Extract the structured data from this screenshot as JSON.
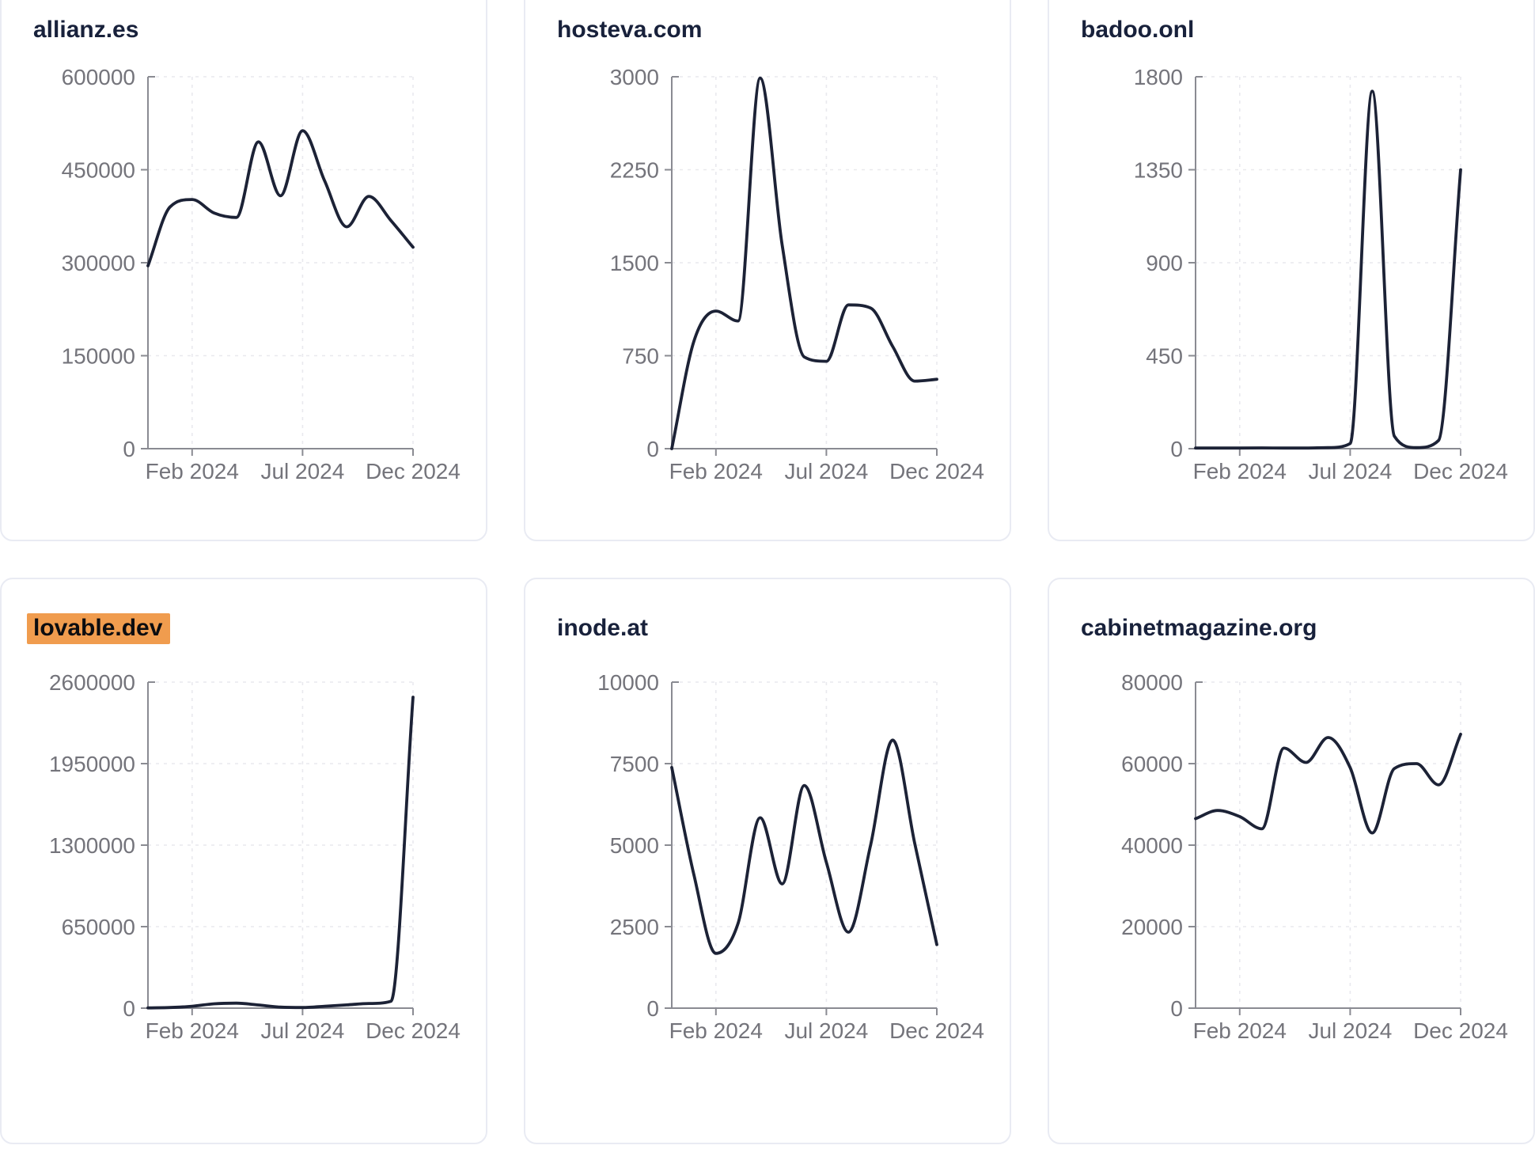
{
  "ui": {
    "colors": {
      "line": "#1c2236",
      "title_text": "#18213b",
      "axis_line": "#8a8b92",
      "tick_label": "#74747b",
      "gridline": "#e9e9ee",
      "card_border": "#e9ebf3",
      "card_background": "#ffffff",
      "page_background": "#ffffff",
      "highlight_background": "#f09c4e",
      "highlight_text": "#0c0d10"
    }
  },
  "chart_data": [
    {
      "type": "line",
      "title": "allianz.es",
      "highlighted": false,
      "x": [
        "Dec 2023",
        "Jan 2024",
        "Feb 2024",
        "Mar 2024",
        "Apr 2024",
        "May 2024",
        "Jun 2024",
        "Jul 2024",
        "Aug 2024",
        "Sep 2024",
        "Oct 2024",
        "Nov 2024",
        "Dec 2024"
      ],
      "values": [
        295000,
        390000,
        402000,
        380000,
        373000,
        495000,
        408000,
        513000,
        432000,
        358000,
        407000,
        368000,
        325000
      ],
      "y_ticks": [
        0,
        150000,
        300000,
        450000,
        600000
      ],
      "ylim": [
        0,
        600000
      ],
      "x_tick_labels": [
        "Feb 2024",
        "Jul 2024",
        "Dec 2024"
      ],
      "x_tick_indices": [
        2,
        7,
        12
      ],
      "grid": true,
      "legend": false
    },
    {
      "type": "line",
      "title": "hosteva.com",
      "highlighted": false,
      "x": [
        "Dec 2023",
        "Jan 2024",
        "Feb 2024",
        "Mar 2024",
        "Apr 2024",
        "May 2024",
        "Jun 2024",
        "Jul 2024",
        "Aug 2024",
        "Sep 2024",
        "Oct 2024",
        "Nov 2024",
        "Dec 2024"
      ],
      "values": [
        0,
        865,
        1110,
        1030,
        2990,
        1640,
        740,
        705,
        1160,
        1135,
        825,
        545,
        560
      ],
      "y_ticks": [
        0,
        750,
        1500,
        2250,
        3000
      ],
      "ylim": [
        0,
        3000
      ],
      "x_tick_labels": [
        "Feb 2024",
        "Jul 2024",
        "Dec 2024"
      ],
      "x_tick_indices": [
        2,
        7,
        12
      ],
      "grid": true,
      "legend": false
    },
    {
      "type": "line",
      "title": "badoo.onl",
      "highlighted": false,
      "x": [
        "Dec 2023",
        "Jan 2024",
        "Feb 2024",
        "Mar 2024",
        "Apr 2024",
        "May 2024",
        "Jun 2024",
        "Jul 2024",
        "Aug 2024",
        "Sep 2024",
        "Oct 2024",
        "Nov 2024",
        "Dec 2024"
      ],
      "values": [
        3,
        3,
        3,
        4,
        3,
        3,
        5,
        25,
        1730,
        60,
        5,
        40,
        1350
      ],
      "y_ticks": [
        0,
        450,
        900,
        1350,
        1800
      ],
      "ylim": [
        0,
        1800
      ],
      "x_tick_labels": [
        "Feb 2024",
        "Jul 2024",
        "Dec 2024"
      ],
      "x_tick_indices": [
        2,
        7,
        12
      ],
      "grid": true,
      "legend": false
    },
    {
      "type": "line",
      "title": "lovable.dev",
      "highlighted": true,
      "x": [
        "Dec 2023",
        "Jan 2024",
        "Feb 2024",
        "Mar 2024",
        "Apr 2024",
        "May 2024",
        "Jun 2024",
        "Jul 2024",
        "Aug 2024",
        "Sep 2024",
        "Oct 2024",
        "Nov 2024",
        "Dec 2024"
      ],
      "values": [
        2000,
        5000,
        15000,
        35000,
        40000,
        25000,
        8000,
        5000,
        15000,
        26000,
        37000,
        55000,
        2480000
      ],
      "y_ticks": [
        0,
        650000,
        1300000,
        1950000,
        2600000
      ],
      "ylim": [
        0,
        2600000
      ],
      "x_tick_labels": [
        "Feb 2024",
        "Jul 2024",
        "Dec 2024"
      ],
      "x_tick_indices": [
        2,
        7,
        12
      ],
      "grid": true,
      "legend": false
    },
    {
      "type": "line",
      "title": "inode.at",
      "highlighted": false,
      "x": [
        "Dec 2023",
        "Jan 2024",
        "Feb 2024",
        "Mar 2024",
        "Apr 2024",
        "May 2024",
        "Jun 2024",
        "Jul 2024",
        "Aug 2024",
        "Sep 2024",
        "Oct 2024",
        "Nov 2024",
        "Dec 2024"
      ],
      "values": [
        7380,
        4100,
        1680,
        2600,
        5840,
        3810,
        6830,
        4470,
        2330,
        5000,
        8220,
        5050,
        1950
      ],
      "y_ticks": [
        0,
        2500,
        5000,
        7500,
        10000
      ],
      "ylim": [
        0,
        10000
      ],
      "x_tick_labels": [
        "Feb 2024",
        "Jul 2024",
        "Dec 2024"
      ],
      "x_tick_indices": [
        2,
        7,
        12
      ],
      "grid": true,
      "legend": false
    },
    {
      "type": "line",
      "title": "cabinetmagazine.org",
      "highlighted": false,
      "x": [
        "Dec 2023",
        "Jan 2024",
        "Feb 2024",
        "Mar 2024",
        "Apr 2024",
        "May 2024",
        "Jun 2024",
        "Jul 2024",
        "Aug 2024",
        "Sep 2024",
        "Oct 2024",
        "Nov 2024",
        "Dec 2024"
      ],
      "values": [
        46500,
        48500,
        47000,
        44000,
        63800,
        60300,
        66400,
        59000,
        43000,
        58800,
        60000,
        54800,
        67200
      ],
      "y_ticks": [
        0,
        20000,
        40000,
        60000,
        80000
      ],
      "ylim": [
        0,
        80000
      ],
      "x_tick_labels": [
        "Feb 2024",
        "Jul 2024",
        "Dec 2024"
      ],
      "x_tick_indices": [
        2,
        7,
        12
      ],
      "grid": true,
      "legend": false
    }
  ]
}
